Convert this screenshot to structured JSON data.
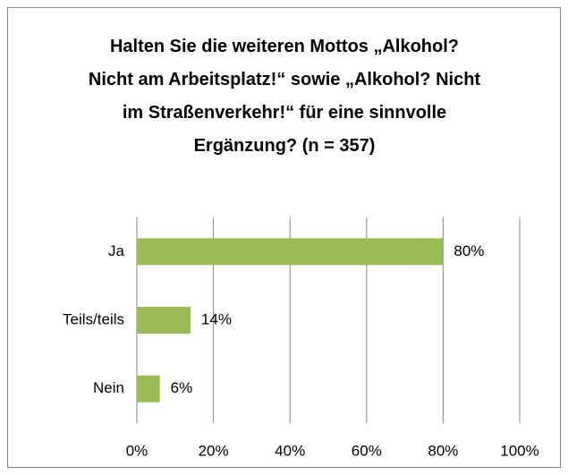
{
  "chart_data": {
    "type": "bar",
    "orientation": "horizontal",
    "title": "Halten Sie die weiteren Mottos „Alkohol? Nicht am Arbeitsplatz!“ sowie „Alkohol? Nicht im Straßenverkehr!“ für eine sinnvolle Ergänzung? (n = 357)",
    "categories": [
      "Ja",
      "Teils/teils",
      "Nein"
    ],
    "values": [
      80,
      14,
      6
    ],
    "value_labels": [
      "80%",
      "14%",
      "6%"
    ],
    "color": "#9bbb59",
    "xlim": [
      0,
      100
    ],
    "xticks": [
      {
        "value": 0,
        "label": "0%"
      },
      {
        "value": 20,
        "label": "20%"
      },
      {
        "value": 40,
        "label": "40%"
      },
      {
        "value": 60,
        "label": "60%"
      },
      {
        "value": 80,
        "label": "80%"
      },
      {
        "value": 100,
        "label": "100%"
      }
    ],
    "grid": true
  }
}
